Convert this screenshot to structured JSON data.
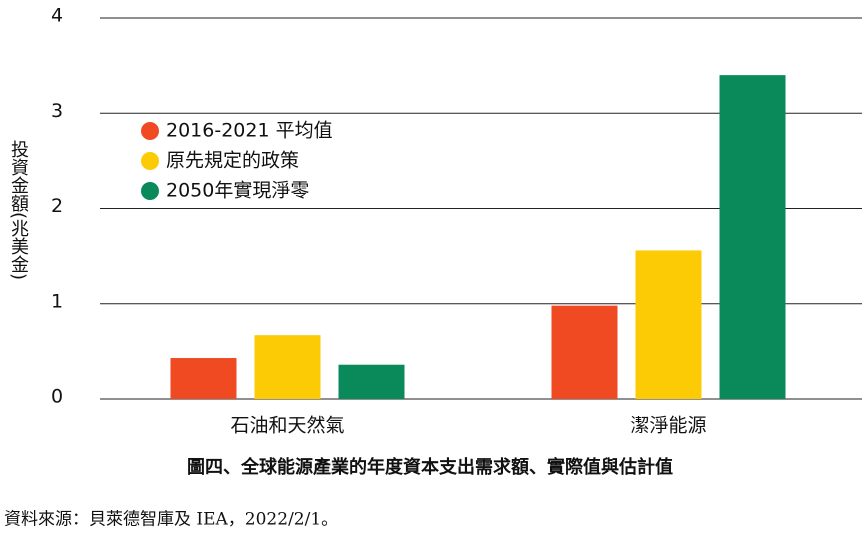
{
  "chart_data": {
    "type": "bar",
    "y_label": "投資金額(兆美金)",
    "categories": [
      "石油和天然氣",
      "潔淨能源"
    ],
    "series": [
      {
        "name": "2016-2021 平均值",
        "color": "#f04a23",
        "values": [
          0.43,
          0.98
        ]
      },
      {
        "name": "原先規定的政策",
        "color": "#fccb05",
        "values": [
          0.67,
          1.56
        ]
      },
      {
        "name": "2050年實現淨零",
        "color": "#0a8a5a",
        "values": [
          0.36,
          3.4
        ]
      }
    ],
    "ylim": [
      0,
      4
    ],
    "yticks": [
      0,
      1,
      2,
      3,
      4
    ],
    "grid": true,
    "legend": "upper left",
    "caption": "圖四、全球能源產業的年度資本支出需求額、實際值與估計值",
    "source": "資料來源：貝萊德智庫及 IEA，2022/2/1。"
  }
}
